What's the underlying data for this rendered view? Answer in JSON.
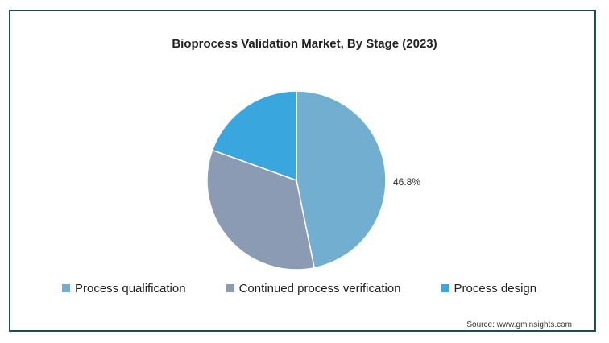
{
  "chart_data": {
    "type": "pie",
    "title": "Bioprocess Validation Market, By Stage (2023)",
    "slices": [
      {
        "name": "Process qualification",
        "value": 46.8,
        "color": "#72aed0",
        "label": "46.8%"
      },
      {
        "name": "Continued process verification",
        "value": 33.7,
        "color": "#8a9bb3",
        "label": ""
      },
      {
        "name": "Process design",
        "value": 19.5,
        "color": "#3aa6de",
        "label": ""
      }
    ],
    "legend_position": "bottom",
    "source": "Source: www.gminsights.com"
  }
}
